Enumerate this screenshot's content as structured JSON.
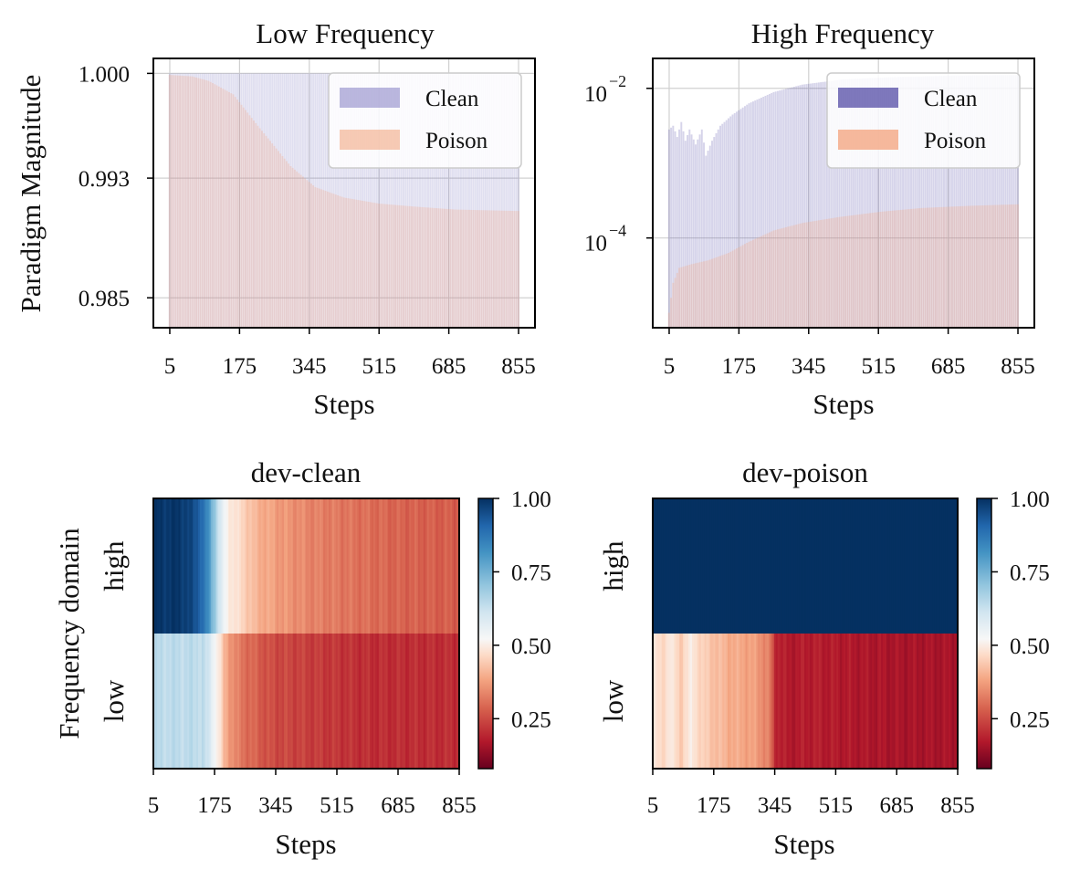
{
  "chart_data": [
    {
      "id": "low-frequency",
      "type": "bar",
      "title": "Low Frequency",
      "xlabel": "Steps",
      "ylabel": "Paradigm Magnitude",
      "x_ticks": [
        "5",
        "175",
        "345",
        "515",
        "685",
        "855"
      ],
      "y_ticks": [
        "1.000",
        "0.993",
        "0.985"
      ],
      "y_tick_values": [
        1.0,
        0.993,
        0.985
      ],
      "ylim": [
        0.983,
        1.001
      ],
      "xlim": [
        -35,
        895
      ],
      "grid": true,
      "legend": {
        "position": "top-right",
        "entries": [
          "Clean",
          "Poison"
        ]
      },
      "series": [
        {
          "name": "Clean",
          "color": "#8e88c8",
          "opacity": 0.6,
          "steps_start": 5,
          "steps_end": 855,
          "keypoints": [
            [
              5,
              1.0
            ],
            [
              855,
              1.0
            ]
          ]
        },
        {
          "name": "Poison",
          "color": "#f4a883",
          "opacity": 0.65,
          "steps_start": 5,
          "steps_end": 855,
          "keypoints": [
            [
              5,
              0.9999
            ],
            [
              60,
              0.9998
            ],
            [
              100,
              0.9995
            ],
            [
              160,
              0.9986
            ],
            [
              220,
              0.9965
            ],
            [
              300,
              0.9938
            ],
            [
              360,
              0.9924
            ],
            [
              430,
              0.9917
            ],
            [
              515,
              0.9913
            ],
            [
              600,
              0.9911
            ],
            [
              700,
              0.9909
            ],
            [
              855,
              0.9908
            ]
          ]
        }
      ]
    },
    {
      "id": "high-frequency",
      "type": "bar",
      "title": "High Frequency",
      "xlabel": "Steps",
      "ylabel": "",
      "y_scale": "log",
      "x_ticks": [
        "5",
        "175",
        "345",
        "515",
        "685",
        "855"
      ],
      "y_ticks": [
        {
          "base": "10",
          "exp": "−2"
        },
        {
          "base": "10",
          "exp": "−4"
        }
      ],
      "y_tick_exponents": [
        -2,
        -4
      ],
      "ylim_log10": [
        -5.2,
        -1.6
      ],
      "xlim": [
        -35,
        895
      ],
      "grid": true,
      "legend": {
        "position": "top-right",
        "entries": [
          "Clean",
          "Poison"
        ]
      },
      "series": [
        {
          "name": "Clean",
          "color": "#4840a0",
          "opacity": 0.5,
          "steps_start": 5,
          "steps_end": 855,
          "keypoints_log10": [
            [
              5,
              -2.55
            ],
            [
              15,
              -2.5
            ],
            [
              25,
              -2.65
            ],
            [
              35,
              -2.45
            ],
            [
              45,
              -2.7
            ],
            [
              55,
              -2.55
            ],
            [
              70,
              -2.75
            ],
            [
              85,
              -2.55
            ],
            [
              95,
              -2.9
            ],
            [
              110,
              -2.7
            ],
            [
              130,
              -2.5
            ],
            [
              160,
              -2.35
            ],
            [
              200,
              -2.2
            ],
            [
              260,
              -2.05
            ],
            [
              330,
              -1.95
            ],
            [
              430,
              -1.88
            ],
            [
              550,
              -1.85
            ],
            [
              700,
              -1.83
            ],
            [
              855,
              -1.82
            ]
          ]
        },
        {
          "name": "Poison",
          "color": "#f4a883",
          "opacity": 0.7,
          "steps_start": 5,
          "steps_end": 855,
          "keypoints_log10": [
            [
              5,
              -5.0
            ],
            [
              15,
              -4.6
            ],
            [
              30,
              -4.4
            ],
            [
              60,
              -4.35
            ],
            [
              100,
              -4.3
            ],
            [
              150,
              -4.2
            ],
            [
              200,
              -4.05
            ],
            [
              260,
              -3.9
            ],
            [
              330,
              -3.8
            ],
            [
              420,
              -3.72
            ],
            [
              520,
              -3.65
            ],
            [
              620,
              -3.6
            ],
            [
              740,
              -3.57
            ],
            [
              855,
              -3.55
            ]
          ]
        }
      ]
    },
    {
      "id": "dev-clean",
      "type": "heatmap",
      "title": "dev-clean",
      "xlabel": "Steps",
      "ylabel": "Frequency domain",
      "rows": [
        "high",
        "low"
      ],
      "x_ticks": [
        "5",
        "175",
        "345",
        "515",
        "685",
        "855"
      ],
      "colormap": "RdBu",
      "vmin": 0.08,
      "vmax": 1.0,
      "colorbar_ticks": [
        "1.00",
        "0.75",
        "0.50",
        "0.25"
      ],
      "colorbar_tick_values": [
        1.0,
        0.75,
        0.5,
        0.25
      ],
      "values": {
        "high": [
          [
            5,
            0.99
          ],
          [
            80,
            0.99
          ],
          [
            130,
            0.93
          ],
          [
            155,
            0.82
          ],
          [
            175,
            0.72
          ],
          [
            190,
            0.6
          ],
          [
            215,
            0.5
          ],
          [
            240,
            0.46
          ],
          [
            290,
            0.38
          ],
          [
            360,
            0.34
          ],
          [
            450,
            0.31
          ],
          [
            560,
            0.29
          ],
          [
            680,
            0.27
          ],
          [
            855,
            0.26
          ]
        ],
        "low": [
          [
            5,
            0.66
          ],
          [
            140,
            0.66
          ],
          [
            165,
            0.6
          ],
          [
            185,
            0.5
          ],
          [
            200,
            0.38
          ],
          [
            240,
            0.3
          ],
          [
            330,
            0.24
          ],
          [
            450,
            0.22
          ],
          [
            600,
            0.2
          ],
          [
            855,
            0.2
          ]
        ]
      }
    },
    {
      "id": "dev-poison",
      "type": "heatmap",
      "title": "dev-poison",
      "xlabel": "Steps",
      "ylabel": "",
      "rows": [
        "high",
        "low"
      ],
      "x_ticks": [
        "5",
        "175",
        "345",
        "515",
        "685",
        "855"
      ],
      "colormap": "RdBu",
      "vmin": 0.08,
      "vmax": 1.0,
      "colorbar_ticks": [
        "1.00",
        "0.75",
        "0.50",
        "0.25"
      ],
      "colorbar_tick_values": [
        1.0,
        0.75,
        0.5,
        0.25
      ],
      "values": {
        "high": [
          [
            5,
            1.0
          ],
          [
            855,
            1.0
          ]
        ],
        "low": [
          [
            5,
            0.47
          ],
          [
            30,
            0.44
          ],
          [
            50,
            0.5
          ],
          [
            80,
            0.42
          ],
          [
            110,
            0.5
          ],
          [
            140,
            0.43
          ],
          [
            180,
            0.4
          ],
          [
            220,
            0.37
          ],
          [
            260,
            0.36
          ],
          [
            300,
            0.34
          ],
          [
            330,
            0.3
          ],
          [
            345,
            0.2
          ],
          [
            380,
            0.17
          ],
          [
            450,
            0.18
          ],
          [
            560,
            0.17
          ],
          [
            700,
            0.16
          ],
          [
            855,
            0.16
          ]
        ]
      }
    }
  ]
}
